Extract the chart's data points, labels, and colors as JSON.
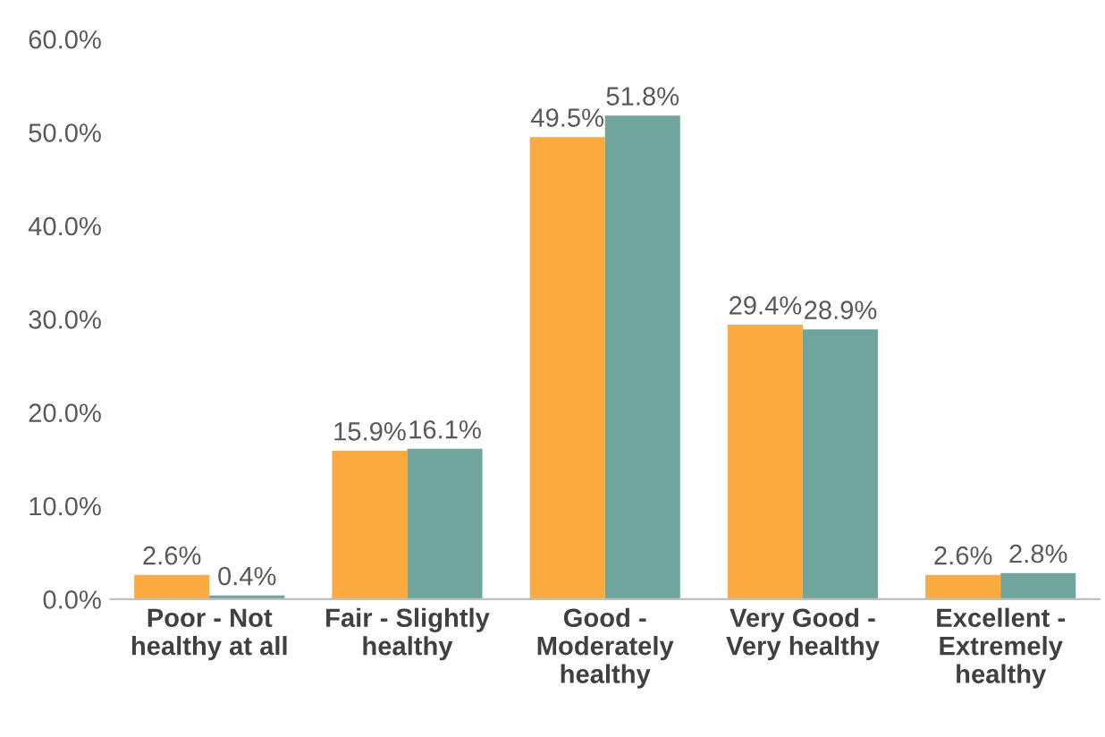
{
  "chart_data": {
    "type": "bar",
    "categories": [
      "Poor - Not\nhealthy at all",
      "Fair - Slightly\nhealthy",
      "Good -\nModerately\nhealthy",
      "Very Good -\nVery healthy",
      "Excellent -\nExtremely\nhealthy"
    ],
    "series": [
      {
        "color": "#fbab3f",
        "values": [
          2.6,
          15.9,
          49.5,
          29.4,
          2.6
        ],
        "value_labels": [
          "2.6%",
          "15.9%",
          "49.5%",
          "29.4%",
          "2.6%"
        ]
      },
      {
        "color": "#6fa59d",
        "values": [
          0.4,
          16.1,
          51.8,
          28.9,
          2.8
        ],
        "value_labels": [
          "0.4%",
          "16.1%",
          "51.8%",
          "28.9%",
          "2.8%"
        ]
      }
    ],
    "ylim": [
      0,
      60
    ],
    "yticks": [
      {
        "value": 0,
        "label": "0.0%"
      },
      {
        "value": 10,
        "label": "10.0%"
      },
      {
        "value": 20,
        "label": "20.0%"
      },
      {
        "value": 30,
        "label": "30.0%"
      },
      {
        "value": 40,
        "label": "40.0%"
      },
      {
        "value": 50,
        "label": "50.0%"
      },
      {
        "value": 60,
        "label": "60.0%"
      }
    ],
    "grid": false,
    "legend": false
  }
}
